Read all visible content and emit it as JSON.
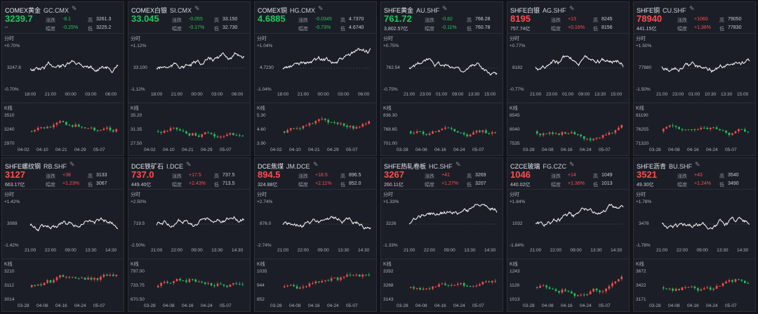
{
  "colors": {
    "up": "#ff4d4f",
    "down": "#22c55e",
    "line": "#ffffff",
    "grid": "#2a2e38",
    "bg": "#1b1e26"
  },
  "tabs": {
    "intraday": "分时",
    "kline": "K线"
  },
  "labels": {
    "change": "涨跌",
    "pct": "幅度",
    "high": "高",
    "low": "低"
  },
  "edit_icon": "pencil-icon",
  "cards": [
    {
      "name": "COMEX黄金",
      "code": "GC.CMX",
      "price": "3239.7",
      "dir": "dn",
      "change": "-8.1",
      "pct": "-0.25%",
      "high": "3261.3",
      "low": "3225.2",
      "amount": "--",
      "intraday": {
        "top": "+0.70%",
        "mid": "3247.8",
        "bot": "-0.70%",
        "times": [
          "18:00",
          "21:00",
          "00:00",
          "03:00",
          "06:00"
        ]
      },
      "kline": {
        "yticks": [
          "3510",
          "3240",
          "2970"
        ],
        "dates": [
          "04-02",
          "04-10",
          "04-21",
          "04-29",
          "05-07"
        ]
      }
    },
    {
      "name": "COMEX白银",
      "code": "SI.CMX",
      "price": "33.045",
      "dir": "dn",
      "change": "-0.055",
      "pct": "-0.17%",
      "high": "33.150",
      "low": "32.730",
      "amount": "",
      "intraday": {
        "top": "+1.12%",
        "mid": "33.100",
        "bot": "-1.12%",
        "times": [
          "18:00",
          "21:00",
          "00:00",
          "03:00",
          "06:00"
        ]
      },
      "kline": {
        "yticks": [
          "35.20",
          "31.35",
          "27.50"
        ],
        "dates": [
          "04-02",
          "04-10",
          "04-21",
          "04-29",
          "05-07"
        ]
      }
    },
    {
      "name": "COMEX铜",
      "code": "HG.CMX",
      "price": "4.6885",
      "dir": "dn",
      "change": "-0.0345",
      "pct": "-0.73%",
      "high": "4.7370",
      "low": "4.6740",
      "amount": "",
      "intraday": {
        "top": "+1.04%",
        "mid": "4.7230",
        "bot": "-1.04%",
        "times": [
          "18:00",
          "21:00",
          "00:00",
          "03:00",
          "06:00"
        ]
      },
      "kline": {
        "yticks": [
          "5.30",
          "4.60",
          "3.90"
        ],
        "dates": [
          "04-02",
          "04-10",
          "04-21",
          "04-29",
          "05-07"
        ]
      }
    },
    {
      "name": "SHFE黄金",
      "code": "AU.SHF",
      "price": "761.72",
      "dir": "dn",
      "change": "-0.82",
      "pct": "-0.11%",
      "high": "768.28",
      "low": "760.78",
      "amount": "3,802.57亿",
      "intraday": {
        "top": "+0.75%",
        "mid": "762.54",
        "bot": "-0.75%",
        "times": [
          "21:00",
          "23:00",
          "01:00",
          "09:00",
          "13:30",
          "15:00"
        ]
      },
      "kline": {
        "yticks": [
          "836.30",
          "768.65",
          "701.00"
        ],
        "dates": [
          "03-28",
          "04-08",
          "04-16",
          "04-24",
          "05-07"
        ]
      }
    },
    {
      "name": "SHFE白银",
      "code": "AG.SHF",
      "price": "8195",
      "dir": "up",
      "change": "+13",
      "pct": "+0.16%",
      "high": "8245",
      "low": "8156",
      "amount": "757.74亿",
      "intraday": {
        "top": "+0.77%",
        "mid": "8182",
        "bot": "-0.77%",
        "times": [
          "21:00",
          "23:00",
          "01:00",
          "09:00",
          "13:30",
          "15:00"
        ]
      },
      "kline": {
        "yticks": [
          "8545",
          "8040",
          "7535"
        ],
        "dates": [
          "03-28",
          "04-08",
          "04-16",
          "04-24",
          "05-07"
        ]
      }
    },
    {
      "name": "SHFE铜",
      "code": "CU.SHF",
      "price": "78940",
      "dir": "up",
      "change": "+1060",
      "pct": "+1.36%",
      "high": "79050",
      "low": "77830",
      "amount": "441.15亿",
      "intraday": {
        "top": "+1.50%",
        "mid": "77880",
        "bot": "-1.50%",
        "times": [
          "21:00",
          "23:00",
          "01:00",
          "10:30",
          "13:30",
          "15:00"
        ]
      },
      "kline": {
        "yticks": [
          "81190",
          "76255",
          "71320"
        ],
        "dates": [
          "03-28",
          "04-08",
          "04-16",
          "04-24",
          "05-07"
        ]
      }
    },
    {
      "name": "SHFE螺纹钢",
      "code": "RB.SHF",
      "price": "3127",
      "dir": "up",
      "change": "+38",
      "pct": "+1.23%",
      "high": "3133",
      "low": "3067",
      "amount": "663.17亿",
      "intraday": {
        "top": "+1.42%",
        "mid": "3089",
        "bot": "-1.42%",
        "times": [
          "21:00",
          "22:00",
          "09:00",
          "13:30",
          "14:30"
        ]
      },
      "kline": {
        "yticks": [
          "3210",
          "3112",
          "3014"
        ],
        "dates": [
          "03-28",
          "04-08",
          "04-16",
          "04-24",
          "05-07"
        ]
      }
    },
    {
      "name": "DCE铁矿石",
      "code": "I.DCE",
      "price": "737.0",
      "dir": "up",
      "change": "+17.5",
      "pct": "+2.43%",
      "high": "737.5",
      "low": "713.5",
      "amount": "449.40亿",
      "intraday": {
        "top": "+2.50%",
        "mid": "719.5",
        "bot": "-2.50%",
        "times": [
          "21:00",
          "22:00",
          "09:00",
          "13:30",
          "14:30"
        ]
      },
      "kline": {
        "yticks": [
          "797.00",
          "733.75",
          "670.50"
        ],
        "dates": [
          "03-28",
          "04-08",
          "04-16",
          "04-24",
          "05-07"
        ]
      }
    },
    {
      "name": "DCE焦煤",
      "code": "JM.DCE",
      "price": "894.5",
      "dir": "up",
      "change": "+18.5",
      "pct": "+2.11%",
      "high": "896.5",
      "low": "852.0",
      "amount": "324.88亿",
      "intraday": {
        "top": "+2.74%",
        "mid": "876.0",
        "bot": "-2.74%",
        "times": [
          "21:00",
          "22:00",
          "09:00",
          "13:30",
          "14:30"
        ]
      },
      "kline": {
        "yticks": [
          "1035",
          "944",
          "852"
        ],
        "dates": [
          "03-28",
          "04-08",
          "04-16",
          "04-24",
          "05-07"
        ]
      }
    },
    {
      "name": "SHFE热轧卷板",
      "code": "HC.SHF",
      "price": "3267",
      "dir": "up",
      "change": "+41",
      "pct": "+1.27%",
      "high": "3269",
      "low": "3207",
      "amount": "260.11亿",
      "intraday": {
        "top": "+1.33%",
        "mid": "3226",
        "bot": "-1.33%",
        "times": [
          "21:00",
          "22:00",
          "09:00",
          "13:30",
          "14:30"
        ]
      },
      "kline": {
        "yticks": [
          "3392",
          "3268",
          "3143"
        ],
        "dates": [
          "03-28",
          "04-08",
          "04-16",
          "04-24",
          "05-07"
        ]
      }
    },
    {
      "name": "CZCE玻璃",
      "code": "FG.CZC",
      "price": "1046",
      "dir": "up",
      "change": "+14",
      "pct": "+1.36%",
      "high": "1049",
      "low": "1013",
      "amount": "440.02亿",
      "intraday": {
        "top": "+1.84%",
        "mid": "1032",
        "bot": "-1.84%",
        "times": [
          "21:00",
          "22:00",
          "09:00",
          "13:30",
          "14:30"
        ]
      },
      "kline": {
        "yticks": [
          "1243",
          "1128",
          "1013"
        ],
        "dates": [
          "03-28",
          "04-08",
          "04-16",
          "04-24",
          "05-07"
        ]
      }
    },
    {
      "name": "SHFE沥青",
      "code": "BU.SHF",
      "price": "3521",
      "dir": "up",
      "change": "+43",
      "pct": "+1.24%",
      "high": "3540",
      "low": "3490",
      "amount": "49.30亿",
      "intraday": {
        "top": "+1.78%",
        "mid": "3478",
        "bot": "-1.78%",
        "times": [
          "21:00",
          "22:00",
          "09:00",
          "13:30",
          "14:30"
        ]
      },
      "kline": {
        "yticks": [
          "3672",
          "3422",
          "3171"
        ],
        "dates": [
          "03-28",
          "04-08",
          "04-16",
          "04-24",
          "05-07"
        ]
      }
    }
  ]
}
